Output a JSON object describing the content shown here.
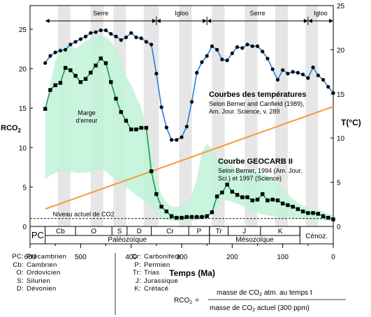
{
  "chart_data": {
    "type": "line",
    "xlabel": "Temps (Ma)",
    "ylabel_left": "RCO",
    "ylabel_left_sub": "2",
    "ylabel_right": "T(°C)",
    "xlim": [
      600,
      0
    ],
    "ylim_left": [
      0,
      28
    ],
    "ylim_right": [
      0,
      25
    ],
    "x_ticks": [
      600,
      500,
      400,
      300,
      200,
      100,
      0
    ],
    "y_left_ticks": [
      0,
      5,
      10,
      15,
      20,
      25
    ],
    "y_right_ticks": [
      0,
      5,
      10,
      15,
      20,
      25
    ],
    "climate_bands": [
      {
        "label": "Serre",
        "from": 570,
        "to": 350
      },
      {
        "label": "Igloo",
        "from": 350,
        "to": 250
      },
      {
        "label": "Serre",
        "from": 250,
        "to": 50
      },
      {
        "label": "Igloo",
        "from": 50,
        "to": 0
      }
    ],
    "gray_stripes": [
      [
        545,
        520
      ],
      [
        480,
        455
      ],
      [
        435,
        410
      ],
      [
        375,
        345
      ],
      [
        305,
        280
      ],
      [
        240,
        215
      ],
      [
        175,
        150
      ],
      [
        115,
        90
      ],
      [
        55,
        30
      ]
    ],
    "temperature_series": {
      "name": "Courbes des températures",
      "source_lines": [
        "Selon Berner and Canfield (1989),",
        "Am. Jour. Science, v. 289"
      ],
      "x": [
        570,
        560,
        550,
        540,
        530,
        520,
        510,
        500,
        490,
        480,
        470,
        460,
        450,
        440,
        430,
        420,
        410,
        400,
        390,
        380,
        370,
        360,
        350,
        340,
        330,
        320,
        310,
        300,
        290,
        280,
        270,
        260,
        250,
        240,
        230,
        220,
        210,
        200,
        190,
        180,
        170,
        160,
        150,
        140,
        130,
        120,
        110,
        100,
        90,
        80,
        70,
        60,
        50,
        40,
        30,
        20,
        10,
        0
      ],
      "y": [
        18.5,
        19.3,
        19.7,
        19.9,
        20.0,
        20.6,
        20.9,
        21.2,
        21.5,
        21.9,
        22.0,
        22.2,
        22.2,
        21.8,
        21.5,
        21.1,
        21.4,
        21.9,
        21.4,
        21.3,
        20.9,
        20.6,
        17.3,
        13.5,
        11.2,
        9.8,
        9.8,
        10.1,
        11.3,
        14.1,
        17.4,
        18.6,
        19.3,
        20.4,
        20.0,
        18.9,
        18.8,
        19.6,
        20.3,
        20.2,
        20.6,
        20.4,
        20.4,
        19.8,
        19.0,
        17.8,
        16.6,
        17.7,
        17.3,
        17.5,
        17.4,
        17.2,
        16.8,
        18.0,
        17.1,
        16.6,
        15.8,
        15.1
      ]
    },
    "rco2_series": {
      "name": "Courbe GEOCARB II",
      "source_lines": [
        "Selon Berner, 1994 (Am. Jour.",
        "Sci.) et 1997 (Science)"
      ],
      "x": [
        570,
        560,
        550,
        540,
        530,
        520,
        510,
        500,
        490,
        480,
        470,
        460,
        450,
        440,
        430,
        420,
        410,
        400,
        390,
        380,
        370,
        360,
        350,
        340,
        330,
        320,
        310,
        300,
        290,
        280,
        270,
        260,
        250,
        240,
        230,
        220,
        210,
        200,
        190,
        180,
        170,
        160,
        150,
        140,
        130,
        120,
        110,
        100,
        90,
        80,
        70,
        60,
        50,
        40,
        30,
        20,
        10,
        0
      ],
      "y": [
        14.9,
        17.3,
        17.9,
        18.2,
        20.1,
        19.8,
        19.1,
        18.3,
        18.7,
        19.5,
        20.4,
        21.3,
        20.7,
        18.3,
        16.2,
        14.5,
        13.4,
        12.3,
        12.3,
        12.5,
        12.5,
        7.0,
        4.1,
        2.5,
        1.9,
        1.3,
        1.1,
        1.1,
        1.2,
        1.2,
        1.2,
        1.2,
        1.3,
        1.8,
        3.8,
        4.3,
        5.3,
        4.4,
        4.0,
        3.7,
        3.7,
        3.3,
        3.4,
        4.1,
        3.3,
        3.4,
        3.3,
        2.9,
        2.7,
        2.5,
        2.2,
        1.9,
        1.7,
        1.7,
        1.6,
        1.3,
        1.1,
        0.9
      ]
    },
    "error_margin": {
      "label_lines": [
        "Marge",
        "d'erreur"
      ],
      "x": [
        570,
        560,
        550,
        540,
        530,
        520,
        510,
        500,
        490,
        480,
        470,
        460,
        450,
        440,
        430,
        420,
        410,
        400,
        390,
        380,
        370,
        360,
        350,
        340,
        330,
        320,
        310,
        300,
        290,
        280,
        270,
        260,
        250,
        240,
        230,
        220,
        210,
        200,
        190,
        180,
        170,
        160,
        150,
        140,
        130,
        120,
        110,
        100,
        90,
        80,
        70,
        60,
        50,
        40,
        30,
        20,
        10,
        0
      ],
      "upper": [
        14,
        18,
        21,
        22.5,
        23,
        23,
        22.5,
        23,
        23.5,
        23.8,
        24,
        24.2,
        24,
        23.5,
        22.5,
        21,
        19,
        18,
        16.5,
        15,
        12.5,
        9.5,
        6,
        4,
        3,
        2.5,
        2.5,
        2.6,
        3,
        4,
        6,
        9.5,
        10.5,
        9.8,
        8.5,
        8.5,
        8.0,
        7.7,
        7.4,
        7.1,
        7.0,
        6.9,
        6.8,
        6.6,
        6.4,
        6.0,
        5.4,
        4.8,
        4.1,
        3.5,
        3.0,
        2.6,
        2.4,
        2.2,
        2.1,
        1.9,
        1.6,
        1.4
      ],
      "lower": [
        6,
        6.5,
        6.8,
        7,
        7,
        7,
        6.8,
        6.8,
        6.8,
        7,
        7.2,
        7.2,
        7,
        6.4,
        6,
        5.5,
        5,
        4.5,
        4,
        3.5,
        3,
        2.5,
        1.5,
        0.9,
        0.8,
        0.7,
        0.7,
        0.7,
        0.7,
        0.7,
        0.8,
        0.9,
        1.0,
        1.5,
        2.3,
        3.4,
        3.3,
        3.1,
        2.9,
        2.6,
        2.2,
        1.9,
        1.7,
        1.5,
        1.4,
        1.3,
        1.2,
        1.1,
        1.1,
        1.0,
        1.0,
        0.9,
        0.9,
        0.9,
        0.8,
        0.8,
        0.7,
        0.7
      ]
    },
    "trend_line": {
      "x": [
        570,
        0
      ],
      "y": [
        2.2,
        15.2
      ]
    },
    "current_level": {
      "label": "Niveau actuel de CO2",
      "y": 1
    }
  },
  "periods": [
    {
      "abbr": "Cb",
      "from": 570,
      "to": 510
    },
    {
      "abbr": "O",
      "from": 510,
      "to": 438
    },
    {
      "abbr": "S",
      "from": 438,
      "to": 408
    },
    {
      "abbr": "D",
      "from": 408,
      "to": 360
    },
    {
      "abbr": "Cr",
      "from": 360,
      "to": 286
    },
    {
      "abbr": "P",
      "from": 286,
      "to": 245
    },
    {
      "abbr": "Tr",
      "from": 245,
      "to": 208
    },
    {
      "abbr": "J",
      "from": 208,
      "to": 144
    },
    {
      "abbr": "K",
      "from": 144,
      "to": 66
    }
  ],
  "eras": [
    {
      "label": "PC",
      "from": 600,
      "to": 570
    },
    {
      "label": "Paléozoïque",
      "from": 570,
      "to": 245
    },
    {
      "label": "Mésozoïque",
      "from": 245,
      "to": 66
    },
    {
      "label": "Cénoz.",
      "from": 66,
      "to": 0
    }
  ],
  "legend_abbr_left": [
    {
      "k": "PC:",
      "v": "Précambrien"
    },
    {
      "k": "Cb:",
      "v": "Cambrien"
    },
    {
      "k": "O:",
      "v": "Ordovicien"
    },
    {
      "k": "S:",
      "v": "Silurien"
    },
    {
      "k": "D:",
      "v": "Dévonien"
    }
  ],
  "legend_abbr_right": [
    {
      "k": "Cr:",
      "v": "Carbonifère"
    },
    {
      "k": "P:",
      "v": "Permien"
    },
    {
      "k": "Tr:",
      "v": "Trias"
    },
    {
      "k": "J:",
      "v": "Jurassique"
    },
    {
      "k": "K:",
      "v": "Crétacé"
    }
  ],
  "formula": {
    "lhs": "RCO",
    "lhs_sub": "2",
    "eq": "=",
    "numerator": "masse de CO",
    "numerator_sub": "2",
    "numerator_tail": " atm. au temps t",
    "denominator": "masse de CO",
    "denominator_sub": "2",
    "denominator_tail": " actuel (300 ppm)"
  },
  "colors": {
    "temperature": "#1f7fe0",
    "rco2": "#1a9a4a",
    "error_band": "#bff2d8",
    "trend": "#f49a3a",
    "gray_stripe": "#e6e6e6"
  }
}
